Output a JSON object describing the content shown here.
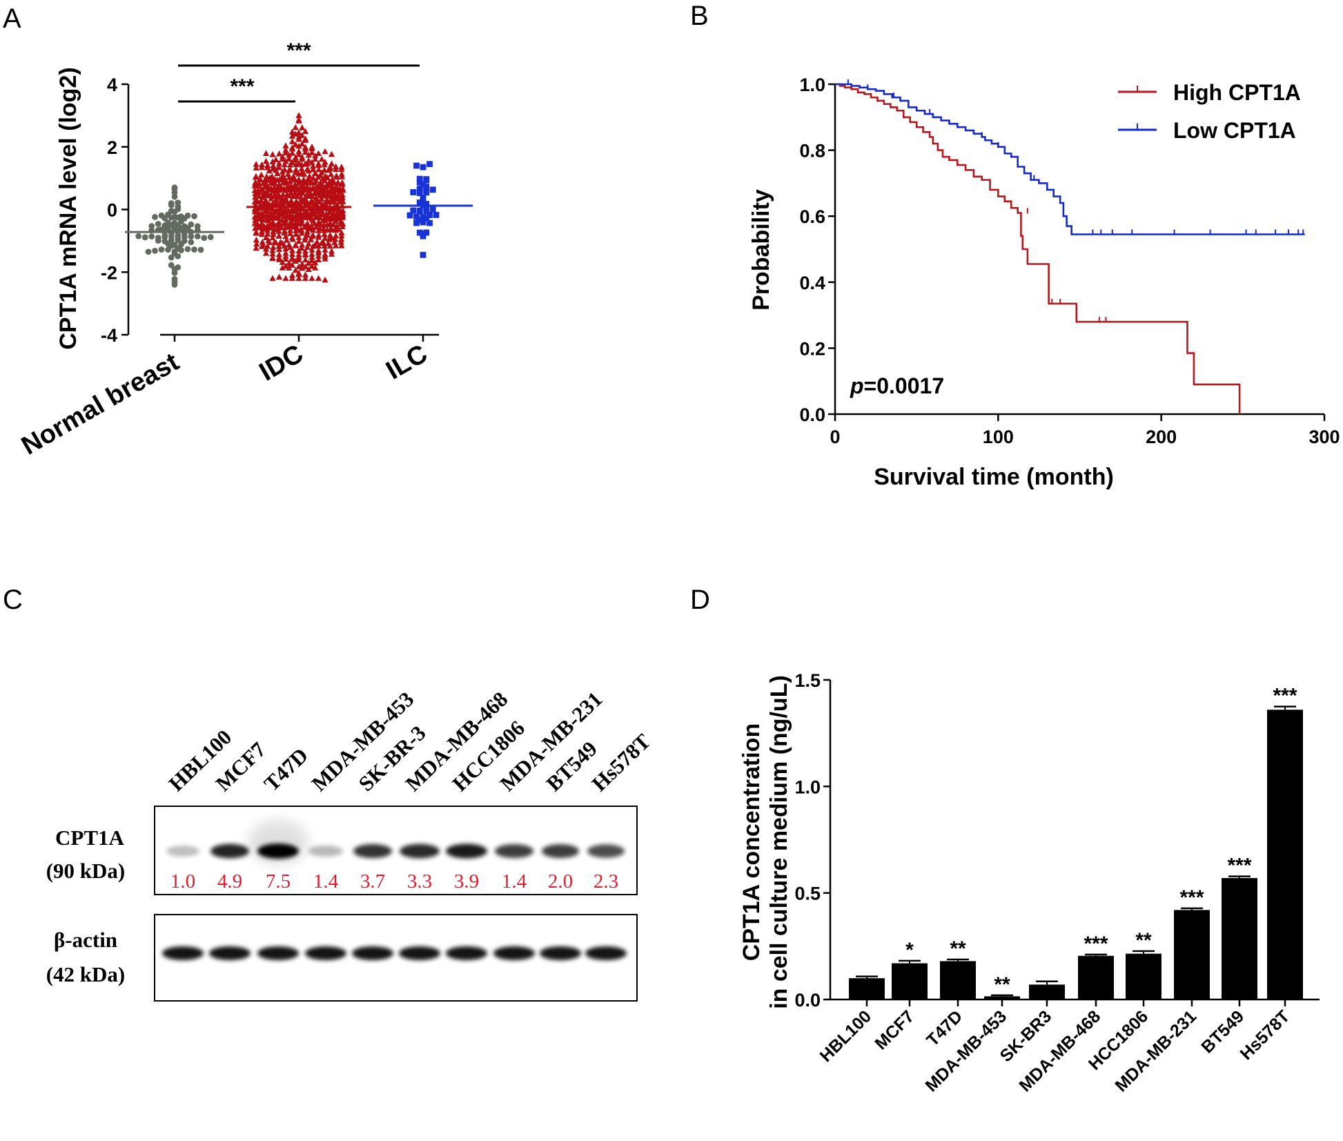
{
  "panels": {
    "a": {
      "letter": "A"
    },
    "b": {
      "letter": "B"
    },
    "c": {
      "letter": "C"
    },
    "d": {
      "letter": "D"
    }
  },
  "chart_data": [
    {
      "panel": "A",
      "type": "scatter",
      "ylabel": "CPT1A mRNA level (log2)",
      "ylim": [
        -4,
        4
      ],
      "yticks": [
        -4,
        -2,
        0,
        2,
        4
      ],
      "groups": [
        {
          "name": "Normal breast",
          "color": "#636a5f",
          "marker": "circle",
          "mean": -0.72,
          "min": -2.4,
          "max": 0.7,
          "n": 90
        },
        {
          "name": "IDC",
          "color": "#b80d12",
          "marker": "triangle",
          "mean": 0.08,
          "min": -2.25,
          "max": 3.0,
          "n": 700
        },
        {
          "name": "ILC",
          "color": "#1732d6",
          "marker": "square",
          "mean": 0.12,
          "min": -1.45,
          "max": 1.45,
          "n": 40
        }
      ],
      "significance": [
        {
          "from": "Normal breast",
          "to": "IDC",
          "label": "***"
        },
        {
          "from": "Normal breast",
          "to": "ILC",
          "label": "***"
        }
      ]
    },
    {
      "panel": "B",
      "type": "line",
      "xlabel": "Survival time (month)",
      "ylabel": "Probability",
      "xlim": [
        0,
        300
      ],
      "ylim": [
        0,
        1.0
      ],
      "xticks": [
        0,
        100,
        200,
        300
      ],
      "yticks": [
        "0.0",
        "0.2",
        "0.4",
        "0.6",
        "0.8",
        "1.0"
      ],
      "annotation": {
        "italic": "p",
        "text": "=0.0017"
      },
      "series": [
        {
          "name": "High CPT1A",
          "color": "#b5171c",
          "points": [
            [
              0,
              1.0
            ],
            [
              3,
              0.995
            ],
            [
              6,
              0.99
            ],
            [
              10,
              0.985
            ],
            [
              14,
              0.975
            ],
            [
              18,
              0.97
            ],
            [
              22,
              0.96
            ],
            [
              26,
              0.95
            ],
            [
              30,
              0.94
            ],
            [
              34,
              0.93
            ],
            [
              38,
              0.92
            ],
            [
              42,
              0.9
            ],
            [
              46,
              0.885
            ],
            [
              50,
              0.87
            ],
            [
              54,
              0.855
            ],
            [
              58,
              0.84
            ],
            [
              60,
              0.82
            ],
            [
              63,
              0.8
            ],
            [
              66,
              0.78
            ],
            [
              70,
              0.77
            ],
            [
              75,
              0.755
            ],
            [
              80,
              0.74
            ],
            [
              85,
              0.72
            ],
            [
              90,
              0.71
            ],
            [
              95,
              0.68
            ],
            [
              100,
              0.66
            ],
            [
              104,
              0.645
            ],
            [
              108,
              0.625
            ],
            [
              112,
              0.61
            ],
            [
              114,
              0.54
            ],
            [
              115,
              0.5
            ],
            [
              118,
              0.455
            ],
            [
              131,
              0.335
            ],
            [
              148,
              0.28
            ],
            [
              216,
              0.185
            ],
            [
              220,
              0.09
            ],
            [
              248,
              0.0
            ]
          ],
          "censors": [
            [
              118,
              0.61
            ],
            [
              133,
              0.335
            ],
            [
              138,
              0.335
            ],
            [
              162,
              0.28
            ],
            [
              166,
              0.28
            ]
          ]
        },
        {
          "name": "Low CPT1A",
          "color": "#1528cf",
          "points": [
            [
              0,
              1.0
            ],
            [
              5,
              1.0
            ],
            [
              10,
              0.995
            ],
            [
              15,
              0.99
            ],
            [
              20,
              0.985
            ],
            [
              25,
              0.98
            ],
            [
              30,
              0.97
            ],
            [
              35,
              0.96
            ],
            [
              40,
              0.95
            ],
            [
              45,
              0.93
            ],
            [
              50,
              0.92
            ],
            [
              55,
              0.91
            ],
            [
              60,
              0.9
            ],
            [
              65,
              0.89
            ],
            [
              70,
              0.88
            ],
            [
              75,
              0.87
            ],
            [
              80,
              0.86
            ],
            [
              85,
              0.85
            ],
            [
              90,
              0.84
            ],
            [
              92,
              0.83
            ],
            [
              96,
              0.82
            ],
            [
              100,
              0.81
            ],
            [
              104,
              0.79
            ],
            [
              108,
              0.78
            ],
            [
              112,
              0.75
            ],
            [
              116,
              0.73
            ],
            [
              120,
              0.71
            ],
            [
              125,
              0.7
            ],
            [
              130,
              0.68
            ],
            [
              134,
              0.66
            ],
            [
              138,
              0.64
            ],
            [
              140,
              0.6
            ],
            [
              142,
              0.57
            ],
            [
              145,
              0.545
            ],
            [
              288,
              0.545
            ]
          ],
          "censors": [
            [
              8,
              1.0
            ],
            [
              20,
              0.985
            ],
            [
              36,
              0.96
            ],
            [
              58,
              0.91
            ],
            [
              90,
              0.84
            ],
            [
              100,
              0.81
            ],
            [
              122,
              0.71
            ],
            [
              158,
              0.545
            ],
            [
              163,
              0.545
            ],
            [
              170,
              0.545
            ],
            [
              182,
              0.545
            ],
            [
              208,
              0.545
            ],
            [
              230,
              0.545
            ],
            [
              252,
              0.545
            ],
            [
              258,
              0.545
            ],
            [
              270,
              0.545
            ],
            [
              278,
              0.545
            ],
            [
              284,
              0.545
            ],
            [
              287,
              0.545
            ]
          ]
        }
      ]
    },
    {
      "panel": "C",
      "type": "table",
      "lanes": [
        "HBL100",
        "MCF7",
        "T47D",
        "MDA-MB-453",
        "SK-BR-3",
        "MDA-MB-468",
        "HCC1806",
        "MDA-MB-231",
        "BT549",
        "Hs578T"
      ],
      "rows": [
        {
          "label_line1": "CPT1A",
          "label_line2": "(90 kDa)",
          "values": [
            "1.0",
            "4.9",
            "7.5",
            "1.4",
            "3.7",
            "3.3",
            "3.9",
            "1.4",
            "2.0",
            "2.3"
          ]
        },
        {
          "label_line1": "β-actin",
          "label_line2": "(42 kDa)"
        }
      ]
    },
    {
      "panel": "D",
      "type": "bar",
      "ylabel_line1": "CPT1A concentration",
      "ylabel_line2": "in cell culture medium (ng/uL)",
      "ylim": [
        0.0,
        1.5
      ],
      "yticks": [
        "0.0",
        "0.5",
        "1.0",
        "1.5"
      ],
      "categories": [
        "HBL100",
        "MCF7",
        "T47D",
        "MDA-MB-453",
        "SK-BR3",
        "MDA-MB-468",
        "HCC1806",
        "MDA-MB-231",
        "BT549",
        "Hs578T"
      ],
      "values": [
        0.1,
        0.17,
        0.18,
        0.015,
        0.07,
        0.205,
        0.215,
        0.42,
        0.57,
        1.36
      ],
      "errors": [
        0.008,
        0.012,
        0.008,
        0.005,
        0.015,
        0.006,
        0.012,
        0.008,
        0.008,
        0.015
      ],
      "significance": [
        "",
        "*",
        "**",
        "**",
        "",
        "***",
        "**",
        "***",
        "***",
        "***"
      ]
    }
  ]
}
